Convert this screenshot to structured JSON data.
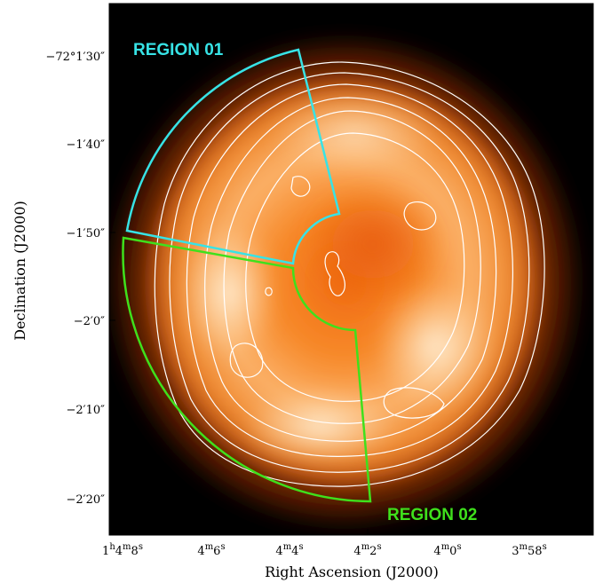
{
  "figure": {
    "xlabel": "Right Ascension (J2000)",
    "ylabel": "Declination (J2000)",
    "x_ticks": [
      {
        "main": "1",
        "sup1": "h",
        "mid": "4",
        "sup2": "m",
        "end": "8",
        "sup3": "s"
      },
      {
        "main": "",
        "sup1": "",
        "mid": "4",
        "sup2": "m",
        "end": "6",
        "sup3": "s"
      },
      {
        "main": "",
        "sup1": "",
        "mid": "4",
        "sup2": "m",
        "end": "4",
        "sup3": "s"
      },
      {
        "main": "",
        "sup1": "",
        "mid": "4",
        "sup2": "m",
        "end": "2",
        "sup3": "s"
      },
      {
        "main": "",
        "sup1": "",
        "mid": "4",
        "sup2": "m",
        "end": "0",
        "sup3": "s"
      },
      {
        "main": "",
        "sup1": "",
        "mid": "3",
        "sup2": "m",
        "end": "58",
        "sup3": "s"
      }
    ],
    "y_ticks": [
      "−72°1′30″",
      "−1′40″",
      "−1′50″",
      "−2′0″",
      "−2′10″",
      "−2′20″"
    ],
    "regions": [
      {
        "label": "REGION 01",
        "color": "#37e3e6"
      },
      {
        "label": "REGION 02",
        "color": "#3fe01c"
      }
    ],
    "colors": {
      "background": "#000000",
      "contour": "#ffffff"
    }
  }
}
